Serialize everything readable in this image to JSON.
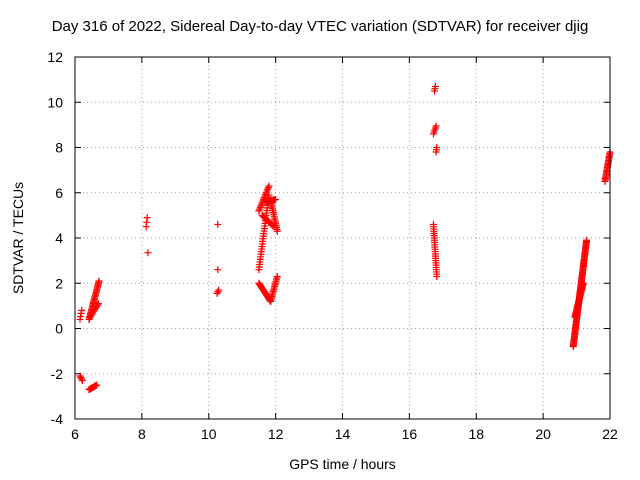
{
  "chart_data": {
    "type": "scatter",
    "title": "Day 316 of 2022, Sidereal Day-to-day VTEC variation (SDTVAR) for receiver djig",
    "xlabel": "GPS time / hours",
    "ylabel": "SDTVAR / TECUs",
    "xlim": [
      6,
      22
    ],
    "ylim": [
      -4,
      12
    ],
    "xticks": [
      "6",
      "8",
      "10",
      "12",
      "14",
      "16",
      "18",
      "20",
      "22"
    ],
    "yticks": [
      "-4",
      "-2",
      "0",
      "2",
      "4",
      "6",
      "8",
      "10",
      "12"
    ],
    "grid": true,
    "marker": "+",
    "color": "#ff0000",
    "series": [
      {
        "name": "SDTVAR",
        "x": [],
        "y": []
      }
    ],
    "segments": [
      {
        "x0": 6.15,
        "x1": 6.2,
        "y0": 0.4,
        "y1": 0.8,
        "n": 4
      },
      {
        "x0": 6.15,
        "x1": 6.22,
        "y0": -2.1,
        "y1": -2.3,
        "n": 4
      },
      {
        "x0": 6.42,
        "x1": 6.65,
        "y0": -2.7,
        "y1": -2.5,
        "n": 10
      },
      {
        "x0": 6.42,
        "x1": 6.72,
        "y0": 0.4,
        "y1": 2.1,
        "n": 28
      },
      {
        "x0": 6.45,
        "x1": 6.7,
        "y0": 0.5,
        "y1": 1.1,
        "n": 10
      },
      {
        "x0": 8.13,
        "x1": 8.16,
        "y0": 4.5,
        "y1": 4.9,
        "n": 3
      },
      {
        "x0": 8.18,
        "x1": 8.18,
        "y0": 3.35,
        "y1": 3.35,
        "n": 1
      },
      {
        "x0": 10.27,
        "x1": 10.28,
        "y0": 4.6,
        "y1": 4.6,
        "n": 1
      },
      {
        "x0": 10.27,
        "x1": 10.28,
        "y0": 2.6,
        "y1": 2.6,
        "n": 1
      },
      {
        "x0": 10.25,
        "x1": 10.3,
        "y0": 1.55,
        "y1": 1.7,
        "n": 3
      },
      {
        "x0": 11.5,
        "x1": 11.8,
        "y0": 2.6,
        "y1": 5.9,
        "n": 30
      },
      {
        "x0": 11.5,
        "x1": 11.85,
        "y0": 2.0,
        "y1": 1.2,
        "n": 18
      },
      {
        "x0": 11.85,
        "x1": 12.05,
        "y0": 1.2,
        "y1": 2.3,
        "n": 16
      },
      {
        "x0": 11.5,
        "x1": 11.8,
        "y0": 5.2,
        "y1": 6.3,
        "n": 16
      },
      {
        "x0": 11.6,
        "x1": 11.95,
        "y0": 5.0,
        "y1": 4.5,
        "n": 14
      },
      {
        "x0": 11.85,
        "x1": 12.05,
        "y0": 5.7,
        "y1": 4.3,
        "n": 18
      },
      {
        "x0": 11.7,
        "x1": 12.0,
        "y0": 5.6,
        "y1": 5.7,
        "n": 10
      },
      {
        "x0": 16.75,
        "x1": 16.78,
        "y0": 10.5,
        "y1": 10.7,
        "n": 3
      },
      {
        "x0": 16.72,
        "x1": 16.8,
        "y0": 8.6,
        "y1": 8.95,
        "n": 5
      },
      {
        "x0": 16.8,
        "x1": 16.82,
        "y0": 7.8,
        "y1": 8.0,
        "n": 3
      },
      {
        "x0": 16.72,
        "x1": 16.82,
        "y0": 4.6,
        "y1": 2.3,
        "n": 24
      },
      {
        "x0": 20.9,
        "x1": 21.3,
        "y0": -0.8,
        "y1": 3.9,
        "n": 90
      },
      {
        "x0": 20.95,
        "x1": 21.2,
        "y0": 0.5,
        "y1": 2.0,
        "n": 30
      },
      {
        "x0": 21.85,
        "x1": 22.0,
        "y0": 6.5,
        "y1": 7.8,
        "n": 22
      }
    ]
  }
}
